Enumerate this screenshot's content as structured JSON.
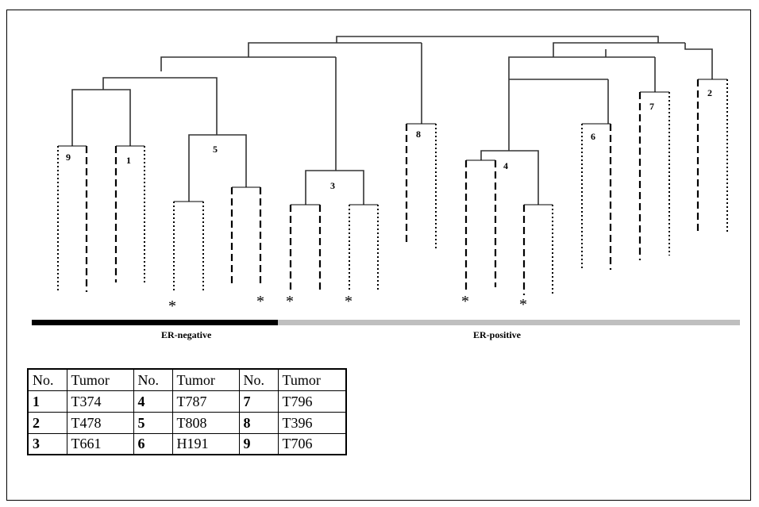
{
  "groups": [
    {
      "label": "ER-negative",
      "color": "#000000"
    },
    {
      "label": "ER-positive",
      "color": "#bfbfbf"
    }
  ],
  "cluster_labels": [
    "9",
    "1",
    "5",
    "3",
    "8",
    "4",
    "6",
    "7",
    "2"
  ],
  "asterisk": "*",
  "legend": {
    "header": [
      "No.",
      "Tumor",
      "No.",
      "Tumor",
      "No.",
      "Tumor"
    ],
    "rows": [
      [
        "1",
        "T374",
        "4",
        "T787",
        "7",
        "T796"
      ],
      [
        "2",
        "T478",
        "5",
        "T808",
        "8",
        "T396"
      ],
      [
        "3",
        "T661",
        "6",
        "H191",
        "9",
        "T706"
      ]
    ]
  }
}
